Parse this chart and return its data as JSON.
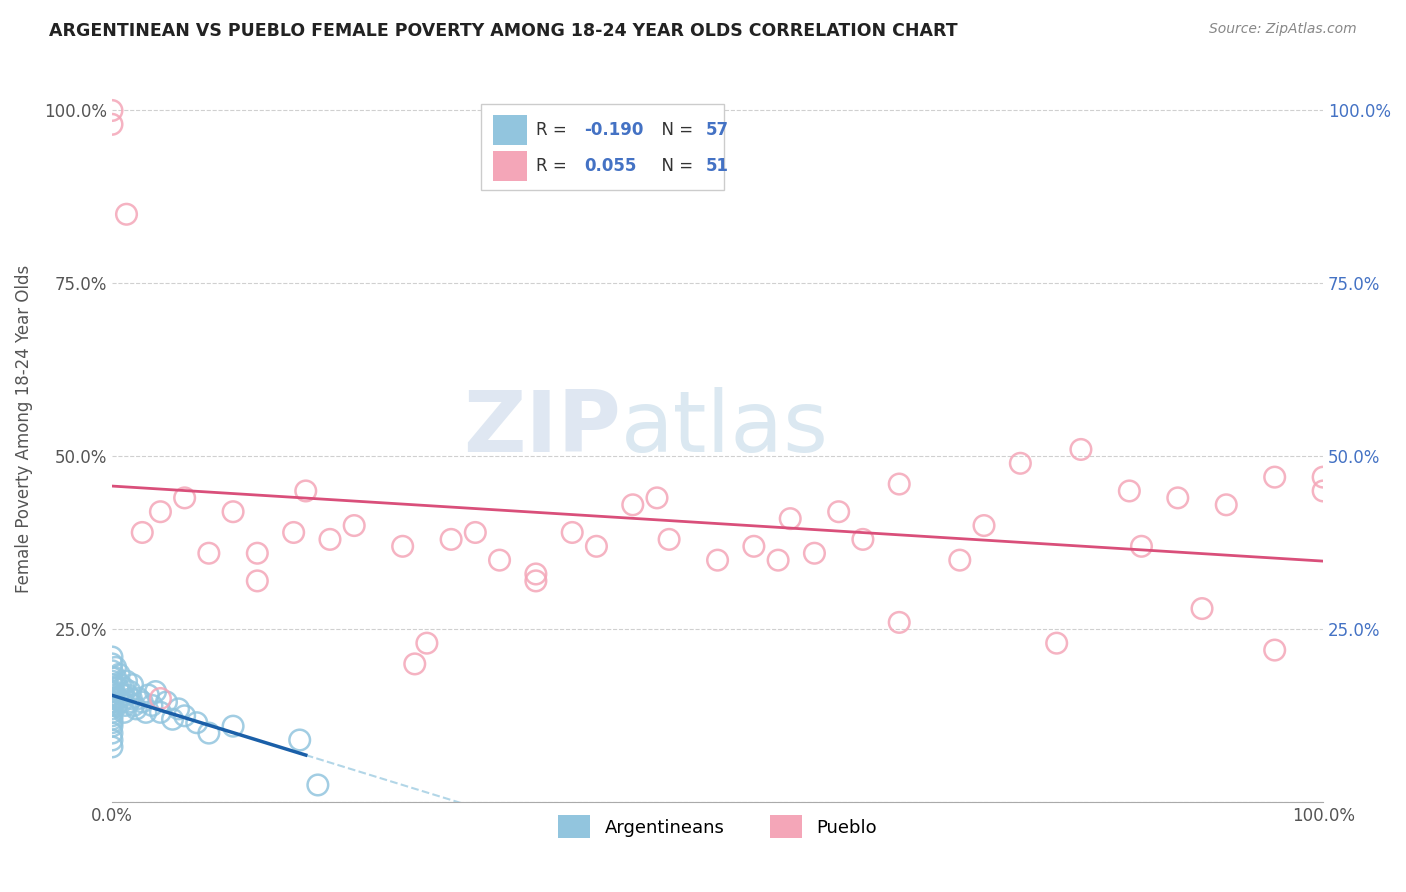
{
  "title": "ARGENTINEAN VS PUEBLO FEMALE POVERTY AMONG 18-24 YEAR OLDS CORRELATION CHART",
  "source": "Source: ZipAtlas.com",
  "ylabel": "Female Poverty Among 18-24 Year Olds",
  "xlim": [
    0,
    1.0
  ],
  "ylim": [
    0,
    1.08
  ],
  "xtick_vals": [
    0,
    1.0
  ],
  "xtick_labels": [
    "0.0%",
    "100.0%"
  ],
  "ytick_vals": [
    0,
    0.25,
    0.5,
    0.75,
    1.0
  ],
  "ytick_labels": [
    "",
    "25.0%",
    "50.0%",
    "75.0%",
    "100.0%"
  ],
  "blue_color": "#92c5de",
  "pink_color": "#f4a6b8",
  "blue_line_color": "#1a5fa8",
  "pink_line_color": "#d94f7a",
  "legend_blue_R": "-0.190",
  "legend_blue_N": "57",
  "legend_pink_R": "0.055",
  "legend_pink_N": "51",
  "watermark_zip": "ZIP",
  "watermark_atlas": "atlas",
  "legend_label_argentineans": "Argentineans",
  "legend_label_pueblo": "Pueblo",
  "blue_label_color": "#4472c4",
  "text_color": "#555555",
  "grid_color": "#d0d0d0",
  "bg_color": "#ffffff",
  "blue_x": [
    0.0,
    0.0,
    0.0,
    0.0,
    0.0,
    0.0,
    0.0,
    0.0,
    0.0,
    0.0,
    0.0,
    0.0,
    0.0,
    0.0,
    0.0,
    0.0,
    0.0,
    0.0,
    0.0,
    0.0,
    0.002,
    0.003,
    0.003,
    0.004,
    0.005,
    0.005,
    0.006,
    0.007,
    0.008,
    0.009,
    0.01,
    0.01,
    0.011,
    0.012,
    0.013,
    0.014,
    0.015,
    0.016,
    0.017,
    0.018,
    0.02,
    0.022,
    0.025,
    0.028,
    0.03,
    0.033,
    0.036,
    0.04,
    0.045,
    0.05,
    0.055,
    0.06,
    0.07,
    0.08,
    0.1,
    0.155,
    0.17
  ],
  "blue_y": [
    0.08,
    0.09,
    0.1,
    0.11,
    0.115,
    0.12,
    0.125,
    0.13,
    0.135,
    0.14,
    0.145,
    0.15,
    0.155,
    0.16,
    0.17,
    0.175,
    0.18,
    0.19,
    0.2,
    0.21,
    0.16,
    0.18,
    0.195,
    0.14,
    0.15,
    0.165,
    0.185,
    0.17,
    0.145,
    0.155,
    0.13,
    0.165,
    0.14,
    0.175,
    0.155,
    0.145,
    0.16,
    0.15,
    0.17,
    0.14,
    0.135,
    0.15,
    0.145,
    0.13,
    0.155,
    0.14,
    0.16,
    0.13,
    0.145,
    0.12,
    0.135,
    0.125,
    0.115,
    0.1,
    0.11,
    0.09,
    0.025
  ],
  "pink_x": [
    0.0,
    0.0,
    0.012,
    0.025,
    0.04,
    0.06,
    0.08,
    0.1,
    0.12,
    0.15,
    0.16,
    0.2,
    0.24,
    0.28,
    0.3,
    0.32,
    0.35,
    0.38,
    0.4,
    0.43,
    0.46,
    0.5,
    0.53,
    0.56,
    0.6,
    0.62,
    0.65,
    0.7,
    0.75,
    0.8,
    0.85,
    0.88,
    0.92,
    0.96,
    1.0,
    1.0,
    0.25,
    0.35,
    0.45,
    0.55,
    0.65,
    0.72,
    0.78,
    0.84,
    0.9,
    0.96,
    0.04,
    0.12,
    0.18,
    0.26,
    0.58
  ],
  "pink_y": [
    1.0,
    0.98,
    0.85,
    0.39,
    0.42,
    0.44,
    0.36,
    0.42,
    0.32,
    0.39,
    0.45,
    0.4,
    0.37,
    0.38,
    0.39,
    0.35,
    0.33,
    0.39,
    0.37,
    0.43,
    0.38,
    0.35,
    0.37,
    0.41,
    0.42,
    0.38,
    0.46,
    0.35,
    0.49,
    0.51,
    0.37,
    0.44,
    0.43,
    0.47,
    0.45,
    0.47,
    0.2,
    0.32,
    0.44,
    0.35,
    0.26,
    0.4,
    0.23,
    0.45,
    0.28,
    0.22,
    0.15,
    0.36,
    0.38,
    0.23,
    0.36
  ]
}
